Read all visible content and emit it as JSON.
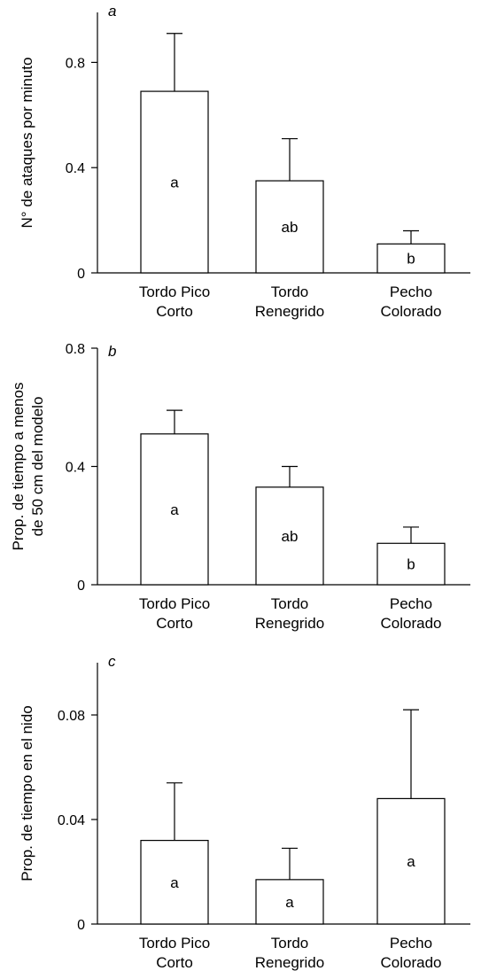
{
  "chart_data": [
    {
      "type": "bar",
      "panel_label": "a",
      "ylabel": "N° de ataques por minuto",
      "categories": [
        [
          "Tordo Pico",
          "Corto"
        ],
        [
          "Tordo",
          "Renegrido"
        ],
        [
          "Pecho",
          "Colorado"
        ]
      ],
      "values": [
        0.69,
        0.35,
        0.11
      ],
      "errors": [
        0.22,
        0.16,
        0.05
      ],
      "significance": [
        "a",
        "ab",
        "b"
      ],
      "yticks": [
        0,
        0.4,
        0.8
      ],
      "ytick_labels": [
        "0",
        "0.4",
        "0.8"
      ],
      "ylim": [
        0,
        0.99
      ]
    },
    {
      "type": "bar",
      "panel_label": "b",
      "ylabel": [
        "Prop. de tiempo a menos",
        "de 50 cm del modelo"
      ],
      "categories": [
        [
          "Tordo Pico",
          "Corto"
        ],
        [
          "Tordo",
          "Renegrido"
        ],
        [
          "Pecho",
          "Colorado"
        ]
      ],
      "values": [
        0.51,
        0.33,
        0.14
      ],
      "errors": [
        0.08,
        0.07,
        0.055
      ],
      "significance": [
        "a",
        "ab",
        "b"
      ],
      "yticks": [
        0,
        0.4,
        0.8
      ],
      "ytick_labels": [
        "0",
        "0.4",
        "0.8"
      ],
      "ylim": [
        0,
        0.8
      ]
    },
    {
      "type": "bar",
      "panel_label": "c",
      "ylabel": "Prop. de tiempo en el nido",
      "categories": [
        [
          "Tordo Pico",
          "Corto"
        ],
        [
          "Tordo",
          "Renegrido"
        ],
        [
          "Pecho",
          "Colorado"
        ]
      ],
      "values": [
        0.032,
        0.017,
        0.048
      ],
      "errors": [
        0.022,
        0.012,
        0.034
      ],
      "significance": [
        "a",
        "a",
        "a"
      ],
      "yticks": [
        0,
        0.04,
        0.08
      ],
      "ytick_labels": [
        "0",
        "0.04",
        "0.08"
      ],
      "ylim": [
        0,
        0.1
      ]
    }
  ]
}
